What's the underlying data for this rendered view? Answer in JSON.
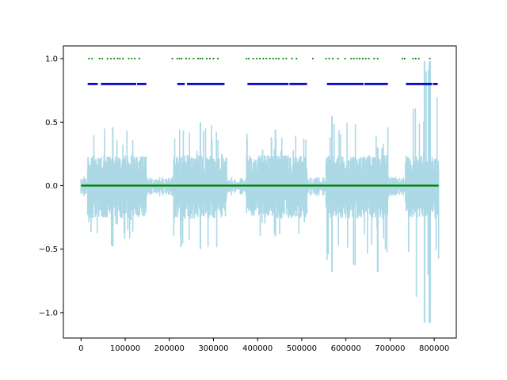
{
  "chart_data": {
    "type": "line",
    "title": "",
    "xlabel": "",
    "ylabel": "",
    "xlim": [
      -40000,
      850000
    ],
    "ylim": [
      -1.2,
      1.1
    ],
    "grid": false,
    "x_ticks": [
      0,
      100000,
      200000,
      300000,
      400000,
      500000,
      600000,
      700000,
      800000
    ],
    "x_tick_labels": [
      "0",
      "100000",
      "200000",
      "300000",
      "400000",
      "500000",
      "600000",
      "700000",
      "800000"
    ],
    "y_ticks": [
      -1.0,
      -0.5,
      0.0,
      0.5,
      1.0
    ],
    "y_tick_labels": [
      "−1.0",
      "−0.5",
      "0.0",
      "0.5",
      "1.0"
    ],
    "colors": {
      "waveform": "#add8e6",
      "segments": "#0000cc",
      "onsets": "#008000",
      "zero_line": "#008000",
      "axes": "#000000"
    },
    "waveform_regions": [
      {
        "start": 15000,
        "end": 148000,
        "peak": 0.46,
        "trough": -0.48
      },
      {
        "start": 210000,
        "end": 330000,
        "peak": 0.5,
        "trough": -0.5
      },
      {
        "start": 375000,
        "end": 512000,
        "peak": 0.44,
        "trough": -0.4
      },
      {
        "start": 555000,
        "end": 695000,
        "peak": 0.55,
        "trough": -0.68
      },
      {
        "start": 735000,
        "end": 810000,
        "peak": 0.98,
        "trough": -1.08
      }
    ],
    "series": [
      {
        "type": "segments",
        "y": 0.8,
        "segments": [
          [
            15000,
            38000
          ],
          [
            45000,
            125000
          ],
          [
            127000,
            148000
          ],
          [
            218000,
            235000
          ],
          [
            240000,
            325000
          ],
          [
            377000,
            470000
          ],
          [
            472000,
            512000
          ],
          [
            557000,
            640000
          ],
          [
            642000,
            695000
          ],
          [
            736000,
            795000
          ],
          [
            797000,
            808000
          ]
        ]
      },
      {
        "type": "scatter",
        "y": 1.0,
        "x": [
          18000,
          25000,
          42000,
          48000,
          60000,
          68000,
          75000,
          83000,
          88000,
          95000,
          108000,
          115000,
          122000,
          132000,
          207000,
          218000,
          223000,
          228000,
          238000,
          245000,
          255000,
          265000,
          270000,
          275000,
          285000,
          292000,
          300000,
          310000,
          375000,
          380000,
          390000,
          398000,
          405000,
          413000,
          420000,
          428000,
          435000,
          442000,
          448000,
          458000,
          465000,
          478000,
          488000,
          525000,
          555000,
          562000,
          570000,
          582000,
          598000,
          612000,
          618000,
          625000,
          631000,
          638000,
          645000,
          652000,
          664000,
          672000,
          728000,
          733000,
          752000,
          758000,
          765000,
          790000
        ]
      },
      {
        "type": "line",
        "y": 0.0,
        "x": [
          0,
          810000
        ]
      }
    ]
  }
}
